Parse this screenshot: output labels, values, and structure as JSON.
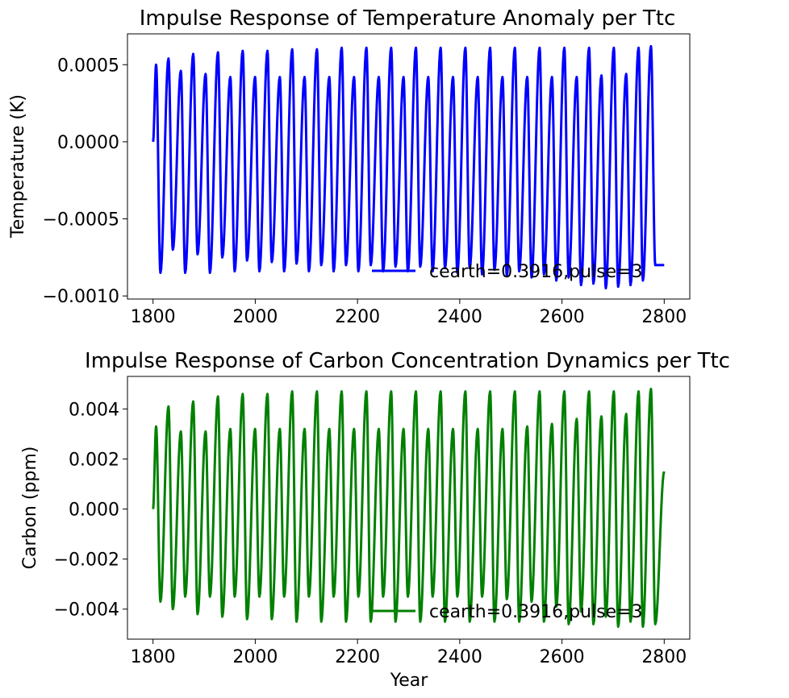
{
  "chart_data": [
    {
      "type": "line",
      "title": "Impulse Response of Temperature Anomaly per Ttc",
      "xlabel": "",
      "ylabel": "Temperature (K)",
      "xlim": [
        1750,
        2850
      ],
      "ylim": [
        -0.00102,
        0.0007
      ],
      "xticks": [
        1800,
        2000,
        2200,
        2400,
        2600,
        2800
      ],
      "xtick_labels": [
        "1800",
        "2000",
        "2200",
        "2400",
        "2600",
        "2800"
      ],
      "yticks": [
        0.0005,
        0.0,
        -0.0005,
        -0.001
      ],
      "ytick_labels": [
        "0.0005",
        "0.0000",
        "−0.0005",
        "−0.0010"
      ],
      "grid": false,
      "legend_position": "lower-right",
      "series": [
        {
          "name": "cearth=0.3916,pulse=3",
          "color": "#0000ff",
          "x_start": 1800,
          "x_end": 2800,
          "period_years": 24.2,
          "start_value": 0.0,
          "peaks": [
            0.0005,
            0.00054,
            0.00046,
            0.00057,
            0.00044,
            0.00058,
            0.00042,
            0.00059,
            0.00042,
            0.00059,
            0.00042,
            0.0006,
            0.00042,
            0.0006,
            0.00042,
            0.00061,
            0.00042,
            0.00061,
            0.00042,
            0.00061,
            0.00042,
            0.00061,
            0.00042,
            0.00061,
            0.00042,
            0.00061,
            0.00042,
            0.00061,
            0.00042,
            0.00061,
            0.00042,
            0.00061,
            0.00042,
            0.00061,
            0.00042,
            0.00061,
            0.00043,
            0.00061,
            0.00044,
            0.00061,
            0.00062
          ],
          "troughs": [
            -0.00085,
            -0.0007,
            -0.00085,
            -0.00073,
            -0.00085,
            -0.00075,
            -0.00084,
            -0.00077,
            -0.00084,
            -0.00078,
            -0.00084,
            -0.00079,
            -0.00084,
            -0.0008,
            -0.00084,
            -0.0008,
            -0.00084,
            -0.0008,
            -0.00084,
            -0.00081,
            -0.00084,
            -0.00081,
            -0.00084,
            -0.00082,
            -0.00085,
            -0.00082,
            -0.00086,
            -0.00083,
            -0.00087,
            -0.00084,
            -0.00088,
            -0.00086,
            -0.0009,
            -0.00088,
            -0.00093,
            -0.00092,
            -0.00095,
            -0.00094,
            -0.00093,
            -0.0009,
            -0.0008
          ],
          "end_value": -0.0008
        }
      ]
    },
    {
      "type": "line",
      "title": "Impulse Response of Carbon Concentration Dynamics per Ttc",
      "xlabel": "Year",
      "ylabel": "Carbon (ppm)",
      "xlim": [
        1750,
        2850
      ],
      "ylim": [
        -0.0052,
        0.0053
      ],
      "xticks": [
        1800,
        2000,
        2200,
        2400,
        2600,
        2800
      ],
      "xtick_labels": [
        "1800",
        "2000",
        "2200",
        "2400",
        "2600",
        "2800"
      ],
      "yticks": [
        0.004,
        0.002,
        0.0,
        -0.002,
        -0.004
      ],
      "ytick_labels": [
        "0.004",
        "0.002",
        "0.000",
        "−0.002",
        "−0.004"
      ],
      "grid": false,
      "legend_position": "lower-right",
      "series": [
        {
          "name": "cearth=0.3916,pulse=3",
          "color": "#008000",
          "x_start": 1800,
          "x_end": 2800,
          "period_years": 24.2,
          "start_value": 0.0,
          "peaks": [
            0.0033,
            0.0041,
            0.0031,
            0.0043,
            0.0031,
            0.0045,
            0.0032,
            0.0046,
            0.0032,
            0.0046,
            0.0032,
            0.0047,
            0.0032,
            0.0047,
            0.0032,
            0.0047,
            0.0032,
            0.0047,
            0.0032,
            0.0047,
            0.0032,
            0.0047,
            0.0032,
            0.0047,
            0.0032,
            0.0047,
            0.0032,
            0.0047,
            0.0032,
            0.0047,
            0.0033,
            0.0047,
            0.0034,
            0.0047,
            0.0036,
            0.0047,
            0.0037,
            0.0047,
            0.0038,
            0.0047,
            0.0048
          ],
          "troughs": [
            -0.0037,
            -0.004,
            -0.0035,
            -0.0042,
            -0.0035,
            -0.0043,
            -0.0035,
            -0.0044,
            -0.0035,
            -0.0044,
            -0.0035,
            -0.0045,
            -0.0035,
            -0.0045,
            -0.0035,
            -0.0045,
            -0.0035,
            -0.0045,
            -0.0035,
            -0.0045,
            -0.0035,
            -0.0045,
            -0.0035,
            -0.0045,
            -0.0035,
            -0.0045,
            -0.0035,
            -0.0045,
            -0.0036,
            -0.0045,
            -0.0037,
            -0.0045,
            -0.0039,
            -0.0046,
            -0.0041,
            -0.0046,
            -0.0043,
            -0.0047,
            -0.0045,
            -0.0047,
            -0.0046
          ],
          "end_value": 0.0015
        }
      ]
    }
  ]
}
